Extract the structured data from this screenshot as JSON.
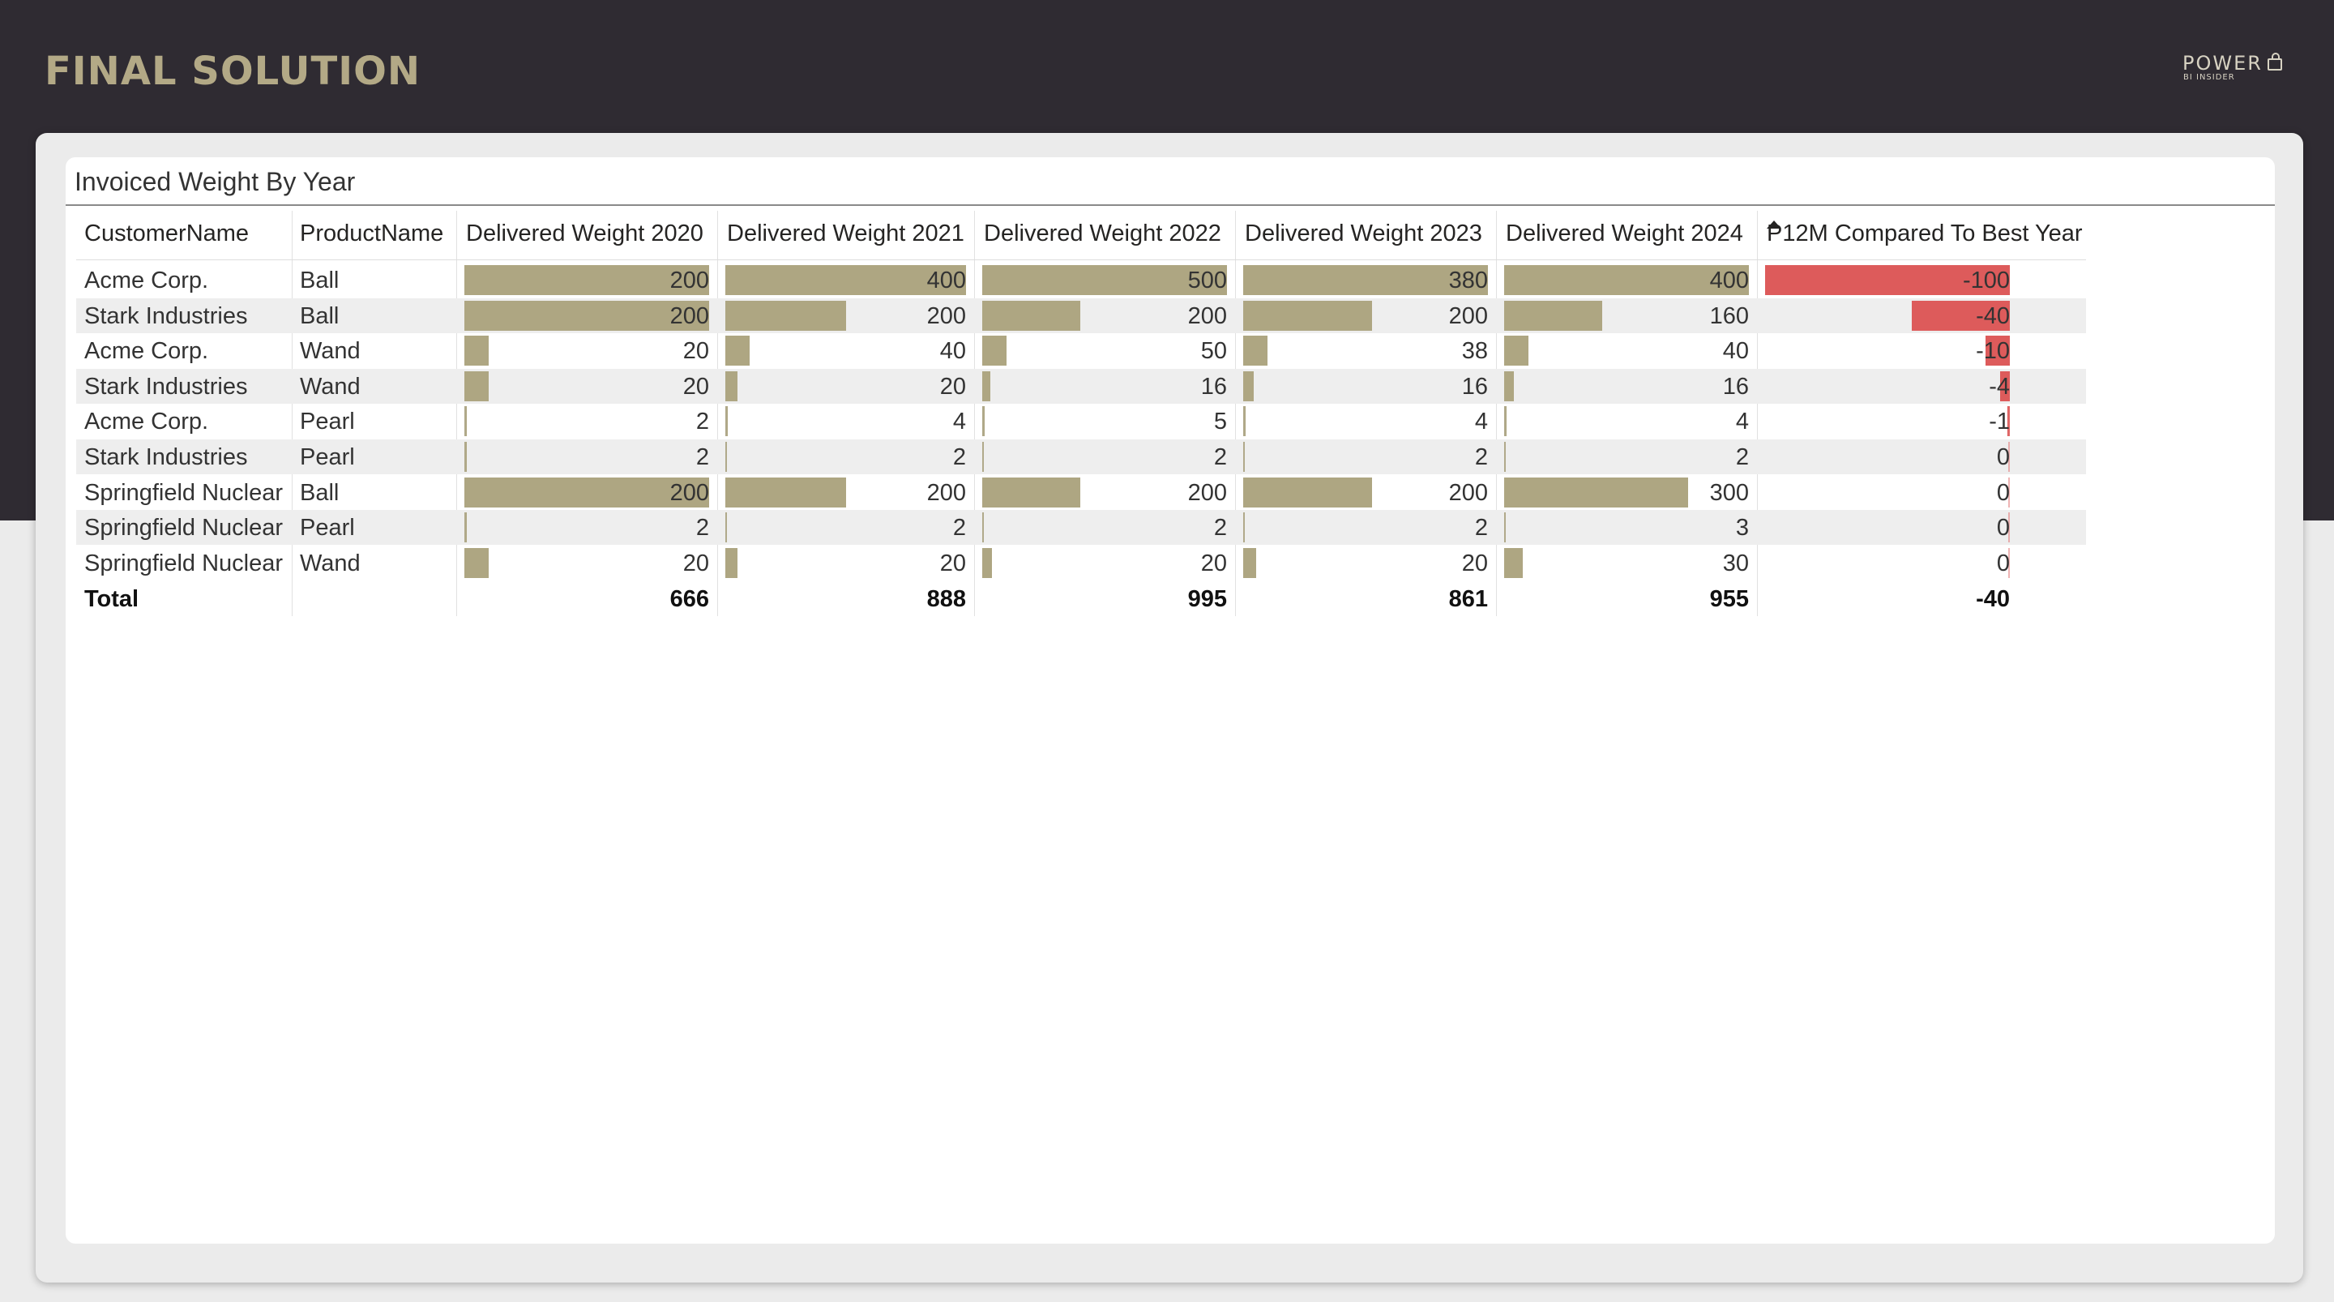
{
  "page": {
    "title": "FINAL SOLUTION",
    "logo": {
      "main": "POWER",
      "sub": "BI INSIDER"
    },
    "colors": {
      "header_band": "#2f2b32",
      "title": "#b3a986",
      "bar": "#aea682",
      "negative_bar": "#dd5b5b"
    }
  },
  "visual": {
    "title": "Invoiced Weight By Year",
    "sort": {
      "column": "P12M Compared To Best Year",
      "icon": "sort-ascending-icon"
    },
    "columns": [
      "CustomerName",
      "ProductName",
      "Delivered Weight 2020",
      "Delivered Weight 2021",
      "Delivered Weight 2022",
      "Delivered Weight 2023",
      "Delivered Weight 2024",
      "P12M Compared To Best Year"
    ],
    "rows": [
      {
        "customer": "Acme Corp.",
        "product": "Ball",
        "values": [
          200,
          400,
          500,
          380,
          400,
          -100
        ]
      },
      {
        "customer": "Stark Industries",
        "product": "Ball",
        "values": [
          200,
          200,
          200,
          200,
          160,
          -40
        ]
      },
      {
        "customer": "Acme Corp.",
        "product": "Wand",
        "values": [
          20,
          40,
          50,
          38,
          40,
          -10
        ]
      },
      {
        "customer": "Stark Industries",
        "product": "Wand",
        "values": [
          20,
          20,
          16,
          16,
          16,
          -4
        ]
      },
      {
        "customer": "Acme Corp.",
        "product": "Pearl",
        "values": [
          2,
          4,
          5,
          4,
          4,
          -1
        ]
      },
      {
        "customer": "Stark Industries",
        "product": "Pearl",
        "values": [
          2,
          2,
          2,
          2,
          2,
          0
        ]
      },
      {
        "customer": "Springfield Nuclear",
        "product": "Ball",
        "values": [
          200,
          200,
          200,
          200,
          300,
          0
        ]
      },
      {
        "customer": "Springfield Nuclear",
        "product": "Pearl",
        "values": [
          2,
          2,
          2,
          2,
          3,
          0
        ]
      },
      {
        "customer": "Springfield Nuclear",
        "product": "Wand",
        "values": [
          20,
          20,
          20,
          20,
          30,
          0
        ]
      }
    ],
    "totals": {
      "label": "Total",
      "values": [
        666,
        888,
        995,
        861,
        955,
        -40
      ]
    }
  }
}
